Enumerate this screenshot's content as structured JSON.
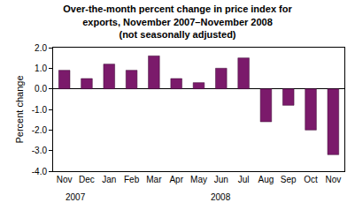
{
  "chart_data": {
    "type": "bar",
    "title": "Over-the-month percent change in price index for exports, November 2007–November 2008",
    "subtitle": "(not seasonally adjusted)",
    "y_label": "Percent change",
    "categories": [
      "Nov",
      "Dec",
      "Jan",
      "Feb",
      "Mar",
      "Apr",
      "May",
      "Jun",
      "Jul",
      "Aug",
      "Sep",
      "Oct",
      "Nov"
    ],
    "years": [
      "2007",
      "2007",
      "2008",
      "2008",
      "2008",
      "2008",
      "2008",
      "2008",
      "2008",
      "2008",
      "2008",
      "2008",
      "2008"
    ],
    "values": [
      0.9,
      0.5,
      1.2,
      0.9,
      1.6,
      0.5,
      0.3,
      1.0,
      1.5,
      -1.6,
      -0.8,
      -2.0,
      -3.2
    ],
    "color": "#7b1a6b",
    "ylim": [
      -4,
      2
    ],
    "yticks": [
      {
        "value": -4,
        "label": "-4.0"
      },
      {
        "value": -3,
        "label": "-3.0"
      },
      {
        "value": -2,
        "label": "-2.0"
      },
      {
        "value": -1,
        "label": "-1.0"
      },
      {
        "value": 0,
        "label": "0.0"
      },
      {
        "value": 1,
        "label": "1.0"
      },
      {
        "value": 2,
        "label": "2.0"
      }
    ],
    "grid": false
  }
}
